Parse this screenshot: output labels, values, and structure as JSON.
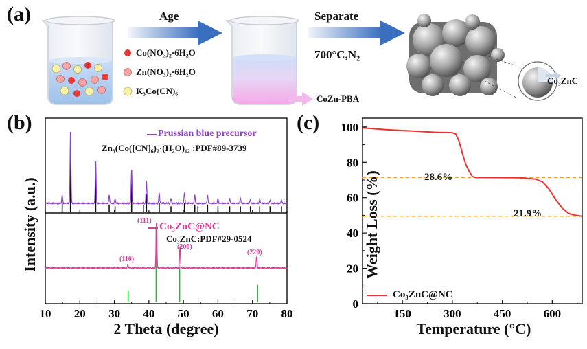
{
  "panel_a": {
    "label": "(a)",
    "reagents": [
      {
        "formula": "Co(NO₃)₂·6H₂O",
        "color": "#e53935"
      },
      {
        "formula": "Zn(NO₃)₂·6H₂O",
        "color": "#f4a6a6"
      },
      {
        "formula": "K₃Co(CN)₆",
        "color": "#f6efa8"
      }
    ],
    "step1_label": "Age",
    "step2_label_top": "Separate",
    "step2_label_bottom": "700°C,N₂",
    "precursor_label": "CoZn-PBA",
    "product_label": "Co₃ZnC"
  },
  "panel_b": {
    "label": "(b)",
    "ylabel": "Intensity (a.u.)",
    "xlabel": "2 Theta (degree)",
    "upper_legend": "Prussian blue precursor",
    "upper_ref": "Zn₃(Co([CN]₆)₂·(H₂O)₁₂ :PDF#89-3739",
    "lower_legend": "Co₃ZnC@NC",
    "lower_ref": "Co₃ZnC:PDF#29-0524",
    "peak_labels": [
      "(111)",
      "(200)",
      "(110)",
      "(220)"
    ]
  },
  "panel_c": {
    "label": "(c)",
    "annotation_1": "28.6%",
    "annotation_2": "21.9%"
  },
  "colors": {
    "purple": "#8e44c9",
    "magenta": "#e0399b",
    "green": "#22c022",
    "red": "#f03030",
    "orange": "#f0a030",
    "arrow_blue": "#3a6fc0"
  },
  "chart_data": [
    {
      "type": "line",
      "title": "",
      "xlabel": "2 Theta (degree)",
      "ylabel": "Intensity (a.u.)",
      "xlim": [
        10,
        80
      ],
      "xticks": [
        10,
        20,
        30,
        40,
        50,
        60,
        70,
        80
      ],
      "series": [
        {
          "name": "Prussian blue precursor",
          "peaks_x": [
            14.9,
            17.3,
            24.6,
            28.5,
            30.2,
            35.0,
            39.3,
            43.0,
            46.4,
            50.3,
            53.3,
            57.0,
            60.0,
            63.4,
            66.5,
            69.4,
            72.1,
            75.1,
            78.4
          ],
          "peaks_h": [
            0.1,
            0.88,
            0.53,
            0.1,
            0.06,
            0.42,
            0.28,
            0.13,
            0.06,
            0.13,
            0.1,
            0.1,
            0.06,
            0.06,
            0.07,
            0.05,
            0.05,
            0.04,
            0.04
          ]
        },
        {
          "name": "Zn₃(Co([CN]₆)₂·(H₂O)₁₂ :PDF#89-3739",
          "peaks_x": [
            14.9,
            17.3,
            24.6,
            28.5,
            30.2,
            35.0,
            38.4,
            39.3,
            43.0,
            46.4,
            50.3,
            53.3,
            54.2,
            57.0,
            60.0,
            63.4,
            66.5,
            69.4,
            72.1,
            75.1,
            78.4
          ],
          "peaks_h": [
            0.1,
            0.7,
            0.4,
            0.08,
            0.06,
            0.32,
            0.08,
            0.2,
            0.1,
            0.06,
            0.1,
            0.08,
            0.06,
            0.08,
            0.06,
            0.06,
            0.06,
            0.06,
            0.06,
            0.06,
            0.06
          ]
        },
        {
          "name": "Co₃ZnC@NC",
          "peaks_x": [
            33.9,
            42.2,
            49.0,
            71.2
          ],
          "peaks_h": [
            0.05,
            0.92,
            0.42,
            0.22
          ]
        },
        {
          "name": "Co₃ZnC:PDF#29-0524",
          "peaks_x": [
            34.0,
            42.1,
            48.9,
            71.5
          ],
          "peaks_h": [
            0.12,
            0.78,
            0.37,
            0.18
          ]
        }
      ]
    },
    {
      "type": "line",
      "title": "",
      "xlabel": "Temperature (°C)",
      "ylabel": "Weight Loss (%)",
      "xlim": [
        30,
        690
      ],
      "ylim": [
        0,
        105
      ],
      "xticks": [
        150,
        300,
        450,
        600
      ],
      "yticks": [
        0,
        20,
        40,
        60,
        80,
        100
      ],
      "reference_lines": [
        71.4,
        49.5
      ],
      "series": [
        {
          "name": "Co₃ZnC@NC",
          "x": [
            30,
            100,
            200,
            250,
            300,
            310,
            320,
            330,
            340,
            350,
            360,
            370,
            400,
            500,
            550,
            570,
            590,
            610,
            630,
            650,
            670,
            690
          ],
          "y": [
            99.5,
            98.5,
            97.5,
            97.0,
            96.8,
            96.0,
            92.0,
            85.0,
            79.0,
            75.0,
            72.0,
            71.4,
            71.4,
            71.3,
            70.5,
            69.0,
            65.0,
            59.0,
            54.0,
            51.0,
            50.0,
            49.5
          ]
        }
      ]
    }
  ]
}
